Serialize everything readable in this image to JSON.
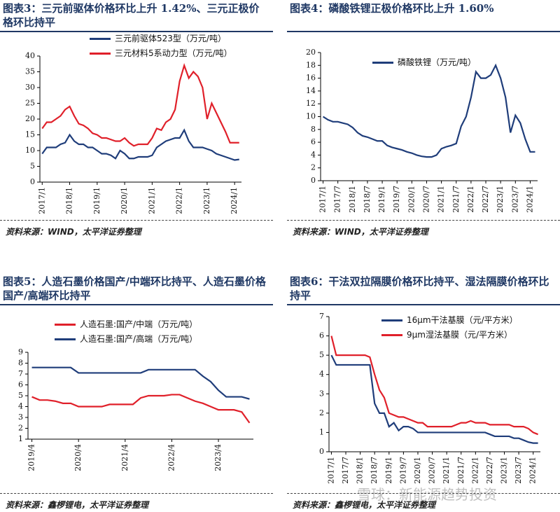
{
  "chart_data": [
    {
      "type": "line",
      "title": "图表3：三元前驱体价格环比上升 1.42%、三元正极价格环比持平",
      "source": "资料来源：WIND，太平洋证券整理",
      "categories": [
        "2017/1",
        null,
        null,
        null,
        null,
        null,
        "2018/1",
        null,
        null,
        null,
        null,
        null,
        "2019/1",
        null,
        null,
        null,
        null,
        null,
        "2020/1",
        null,
        null,
        null,
        null,
        null,
        "2021/1",
        null,
        null,
        null,
        null,
        null,
        "2022/1",
        null,
        null,
        null,
        null,
        null,
        "2023/1",
        null,
        null,
        null,
        null,
        null,
        "2024/1",
        null
      ],
      "series": [
        {
          "name": "三元前驱体523型（万元/吨）",
          "color": "#1f3d7a",
          "values": [
            9,
            11,
            11,
            11,
            12,
            12.5,
            15,
            13,
            12,
            12,
            11,
            11,
            10,
            9,
            9,
            8.5,
            7.5,
            10,
            9,
            7.5,
            7.5,
            8,
            8,
            8,
            8.5,
            11,
            12,
            13,
            13.5,
            14,
            14,
            16.5,
            13,
            11,
            11,
            11,
            10.5,
            10,
            9,
            8.5,
            8,
            7.5,
            7,
            7.2
          ]
        },
        {
          "name": "三元材料5系动力型（万元/吨）",
          "color": "#e0202a",
          "values": [
            17,
            19,
            19,
            20,
            21,
            23,
            24,
            21,
            18.5,
            18,
            17,
            15.5,
            15,
            14,
            14,
            13.5,
            13,
            13,
            14,
            12.5,
            11.5,
            12,
            12,
            12,
            14,
            17,
            16.5,
            19,
            20,
            23,
            32,
            37,
            33,
            35,
            33.5,
            30,
            20,
            25,
            22,
            19,
            16,
            12.5,
            12.5,
            12.5
          ]
        }
      ],
      "ylim": [
        0,
        40
      ],
      "yticks": [
        0,
        5,
        10,
        15,
        20,
        25,
        30,
        35,
        40
      ]
    },
    {
      "type": "line",
      "title": "图表4：磷酸铁锂正极价格环比上升 1.60%",
      "source": "资料来源：WIND，太平洋证券整理",
      "categories": [
        "2017/1",
        null,
        null,
        "2017/7",
        null,
        null,
        "2018/1",
        null,
        null,
        "2018/7",
        null,
        null,
        "2019/1",
        null,
        null,
        "2019/7",
        null,
        null,
        "2020/1",
        null,
        null,
        "2020/7",
        null,
        null,
        "2021/1",
        null,
        null,
        "2021/7",
        null,
        null,
        "2022/1",
        null,
        null,
        "2022/7",
        null,
        null,
        "2023/1",
        null,
        null,
        "2023/7",
        null,
        null,
        "2024/1",
        null
      ],
      "series": [
        {
          "name": "磷酸铁锂（万元/吨）",
          "color": "#1f3d7a",
          "values": [
            10,
            9.5,
            9.2,
            9.2,
            9,
            8.8,
            8.3,
            7.5,
            7,
            6.8,
            6.5,
            6.2,
            6.2,
            5.5,
            5.2,
            5,
            4.8,
            4.5,
            4.3,
            4,
            3.8,
            3.7,
            3.7,
            4,
            5,
            5.3,
            5.5,
            5.8,
            8.5,
            10,
            13,
            17,
            16,
            16,
            16.5,
            18,
            16,
            13,
            7.5,
            10.2,
            9,
            6.5,
            4.5,
            4.5
          ]
        }
      ],
      "ylim": [
        0,
        20
      ],
      "yticks": [
        0,
        2,
        4,
        6,
        8,
        10,
        12,
        14,
        16,
        18,
        20
      ]
    },
    {
      "type": "line",
      "title": "图表5：人造石墨价格国产/中端环比持平、人造石墨价格国产/高端环比持平",
      "source": "资料来源：鑫椤锂电，太平洋证券整理",
      "categories": [
        "2019/4",
        null,
        null,
        null,
        null,
        null,
        "2020/4",
        null,
        null,
        null,
        null,
        null,
        "2021/4",
        null,
        null,
        null,
        null,
        null,
        "2022/4",
        null,
        null,
        null,
        null,
        null,
        "2023/4",
        null,
        null,
        null,
        null
      ],
      "series": [
        {
          "name": "人造石墨:国产/中端（万元/吨）",
          "color": "#e0202a",
          "values": [
            4.9,
            4.6,
            4.6,
            4.5,
            4.3,
            4.3,
            4.0,
            4.0,
            4.0,
            4.0,
            4.2,
            4.2,
            4.2,
            4.2,
            4.8,
            5.0,
            5.0,
            5.0,
            5.1,
            5.1,
            4.8,
            4.5,
            4.3,
            4.0,
            3.7,
            3.7,
            3.7,
            3.5,
            2.5
          ]
        },
        {
          "name": "人造石墨:国产/高端（万元/吨）",
          "color": "#1f3d7a",
          "values": [
            7.6,
            7.6,
            7.6,
            7.6,
            7.6,
            7.6,
            7.1,
            7.1,
            7.1,
            7.1,
            7.1,
            7.1,
            7.1,
            7.1,
            7.1,
            7.4,
            7.4,
            7.4,
            7.4,
            7.4,
            7.4,
            7.4,
            6.8,
            6.3,
            5.5,
            4.9,
            4.9,
            4.9,
            4.7
          ]
        }
      ],
      "ylim": [
        1,
        9
      ],
      "yticks": [
        1,
        2,
        3,
        4,
        5,
        6,
        7,
        8,
        9
      ]
    },
    {
      "type": "line",
      "title": "图表6：干法双拉隔膜价格环比持平、湿法隔膜价格环比持平",
      "source": "资料来源：鑫椤锂电，太平洋证券整理",
      "categories": [
        "2017/1",
        null,
        null,
        "2017/7",
        null,
        null,
        "2018/1",
        null,
        null,
        "2018/7",
        null,
        null,
        "2019/1",
        null,
        null,
        "2019/7",
        null,
        null,
        "2020/1",
        null,
        null,
        "2020/7",
        null,
        null,
        "2021/1",
        null,
        null,
        "2021/7",
        null,
        null,
        "2022/1",
        null,
        null,
        "2022/7",
        null,
        null,
        "2023/1",
        null,
        null,
        "2023/7",
        null,
        null,
        "2024/1",
        null
      ],
      "series": [
        {
          "name": "16μm干法基膜（元/平方米）",
          "color": "#1f3d7a",
          "values": [
            5,
            4.5,
            4.5,
            4.5,
            4.5,
            4.5,
            4.5,
            4.5,
            4.5,
            2.5,
            2.0,
            2.0,
            1.3,
            1.5,
            1.1,
            1.3,
            1.3,
            1.2,
            1.0,
            1.0,
            1.0,
            1.0,
            1.0,
            1.0,
            1.0,
            1.0,
            1.0,
            1.0,
            1.0,
            1.0,
            1.0,
            1.0,
            1.0,
            0.9,
            0.8,
            0.8,
            0.8,
            0.8,
            0.7,
            0.7,
            0.6,
            0.5,
            0.45,
            0.45
          ]
        },
        {
          "name": "9μm湿法基膜（元/平方米）",
          "color": "#e0202a",
          "values": [
            6.0,
            5.0,
            5.0,
            5.0,
            5.0,
            5.0,
            5.0,
            5.0,
            4.9,
            4.0,
            3.2,
            2.8,
            2.0,
            1.9,
            1.8,
            1.8,
            1.7,
            1.6,
            1.5,
            1.5,
            1.3,
            1.3,
            1.3,
            1.3,
            1.3,
            1.3,
            1.4,
            1.5,
            1.5,
            1.6,
            1.5,
            1.5,
            1.5,
            1.4,
            1.4,
            1.4,
            1.4,
            1.4,
            1.3,
            1.3,
            1.3,
            1.2,
            1.0,
            0.9
          ]
        }
      ],
      "ylim": [
        0,
        7
      ],
      "yticks": [
        0,
        1,
        2,
        3,
        4,
        5,
        6,
        7
      ]
    }
  ],
  "watermark": "雪球：新能源趋势投资"
}
